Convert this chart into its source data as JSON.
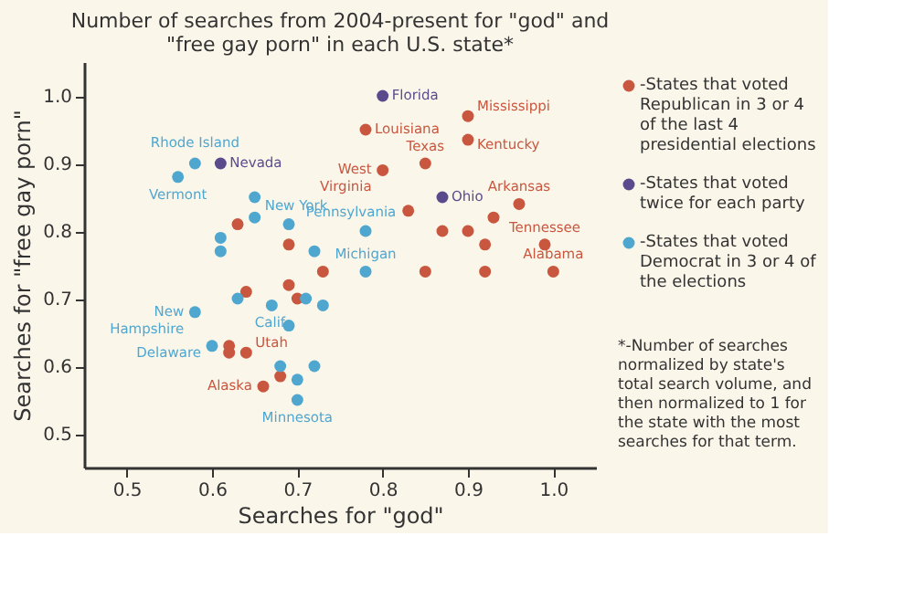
{
  "chart_data": {
    "type": "scatter",
    "title": "Number of searches from 2004-present for \"god\" and \"free gay porn\" in each U.S. state*",
    "xlabel": "Searches for \"god\"",
    "ylabel": "Searches for \"free gay porn\"",
    "xlim": [
      0.45,
      1.05
    ],
    "ylim": [
      0.45,
      1.05
    ],
    "xticks": [
      0.5,
      0.6,
      0.7,
      0.8,
      0.9,
      {
        "value": 1.0,
        "label": "1.0"
      }
    ],
    "yticks": [
      0.5,
      0.6,
      0.7,
      0.8,
      0.9,
      {
        "value": 1.0,
        "label": "1.0"
      }
    ],
    "grid": false,
    "legend": "right",
    "marker": "circle",
    "series": [
      {
        "name": "-States that voted Republican in 3 or 4 of the last 4 presidential elections",
        "color": "#c9573f",
        "x": [
          0.63,
          0.69,
          0.64,
          0.69,
          0.7,
          0.62,
          0.62,
          0.64,
          0.68,
          0.66,
          0.9,
          0.78,
          0.9,
          0.85,
          0.8,
          0.96,
          0.83,
          0.93,
          0.87,
          0.9,
          0.99,
          0.92,
          0.73,
          0.85,
          0.92,
          1.0
        ],
        "values": [
          0.81,
          0.78,
          0.71,
          0.72,
          0.7,
          0.63,
          0.62,
          0.62,
          0.585,
          0.57,
          0.97,
          0.95,
          0.935,
          0.9,
          0.89,
          0.84,
          0.83,
          0.82,
          0.8,
          0.8,
          0.78,
          0.78,
          0.74,
          0.74,
          0.74,
          0.74
        ]
      },
      {
        "name": "-States that voted twice for each party",
        "color": "#5b4b8c",
        "x": [
          0.61,
          0.8,
          0.87
        ],
        "values": [
          0.9,
          1.0,
          0.85
        ]
      },
      {
        "name": "-States that voted Democrat in 3 or 4 of the elections",
        "color": "#4fa7d0",
        "x": [
          0.58,
          0.56,
          0.65,
          0.65,
          0.61,
          0.61,
          0.69,
          0.72,
          0.63,
          0.71,
          0.67,
          0.69,
          0.58,
          0.6,
          0.68,
          0.7,
          0.72,
          0.7,
          0.78,
          0.78,
          0.73
        ],
        "values": [
          0.9,
          0.88,
          0.85,
          0.82,
          0.79,
          0.77,
          0.81,
          0.77,
          0.7,
          0.7,
          0.69,
          0.66,
          0.68,
          0.63,
          0.6,
          0.58,
          0.6,
          0.55,
          0.8,
          0.74,
          0.69
        ]
      }
    ],
    "annotations": [
      {
        "text": "Rhode Island",
        "x": 0.58,
        "y": 0.9
      },
      {
        "text": "Nevada",
        "x": 0.61,
        "y": 0.9
      },
      {
        "text": "Vermont",
        "x": 0.56,
        "y": 0.88
      },
      {
        "text": "New York",
        "x": 0.69,
        "y": 0.81
      },
      {
        "text": "Calif.",
        "x": 0.67,
        "y": 0.69
      },
      {
        "text": "New Hampshire",
        "x": 0.58,
        "y": 0.68
      },
      {
        "text": "Delaware",
        "x": 0.6,
        "y": 0.63
      },
      {
        "text": "Utah",
        "x": 0.64,
        "y": 0.62
      },
      {
        "text": "Alaska",
        "x": 0.66,
        "y": 0.57
      },
      {
        "text": "Minnesota",
        "x": 0.7,
        "y": 0.55
      },
      {
        "text": "Florida",
        "x": 0.8,
        "y": 1.0
      },
      {
        "text": "Mississippi",
        "x": 0.9,
        "y": 0.97
      },
      {
        "text": "Louisiana",
        "x": 0.78,
        "y": 0.95
      },
      {
        "text": "Kentucky",
        "x": 0.9,
        "y": 0.935
      },
      {
        "text": "Texas",
        "x": 0.85,
        "y": 0.9
      },
      {
        "text": "West Virginia",
        "x": 0.8,
        "y": 0.89
      },
      {
        "text": "Ohio",
        "x": 0.87,
        "y": 0.85
      },
      {
        "text": "Arkansas",
        "x": 0.96,
        "y": 0.84
      },
      {
        "text": "Pennsylvania",
        "x": 0.78,
        "y": 0.8
      },
      {
        "text": "Michigan",
        "x": 0.78,
        "y": 0.74
      },
      {
        "text": "Tennessee",
        "x": 0.99,
        "y": 0.78
      },
      {
        "text": "Alabama",
        "x": 1.0,
        "y": 0.74
      },
      "*-Number of searches normalized by state's total search volume, and then normalized to 1 for the state with the most searches for that term."
    ]
  }
}
